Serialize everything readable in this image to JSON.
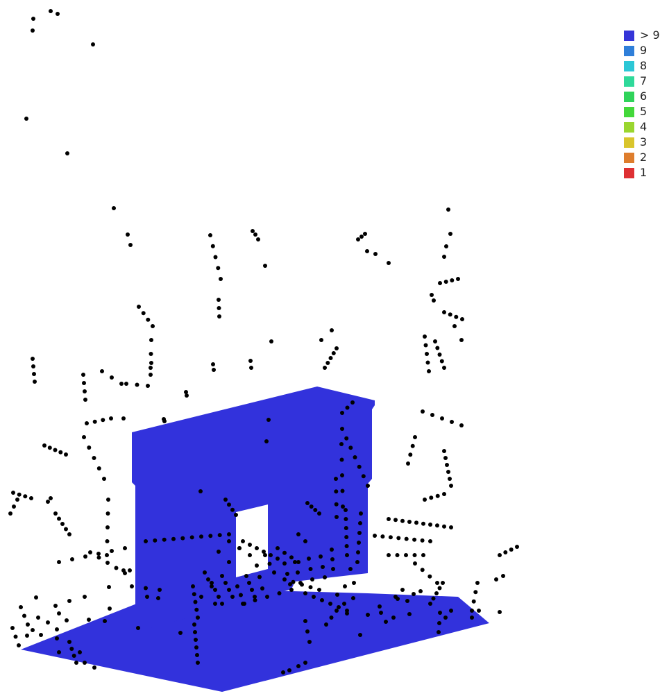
{
  "legend": {
    "items": [
      {
        "label": "> 9",
        "color": "#3535d8"
      },
      {
        "label": "9",
        "color": "#2f7fd9"
      },
      {
        "label": "8",
        "color": "#2cc7d6"
      },
      {
        "label": "7",
        "color": "#2fd99a"
      },
      {
        "label": "6",
        "color": "#2fd35a"
      },
      {
        "label": "5",
        "color": "#43d83a"
      },
      {
        "label": "4",
        "color": "#9ad62f"
      },
      {
        "label": "3",
        "color": "#d9c52c"
      },
      {
        "label": "2",
        "color": "#de7d2d"
      },
      {
        "label": "1",
        "color": "#de3033"
      }
    ]
  },
  "colors": {
    "surface": "#3232dc",
    "points": "#000000",
    "background": "#ffffff"
  }
}
